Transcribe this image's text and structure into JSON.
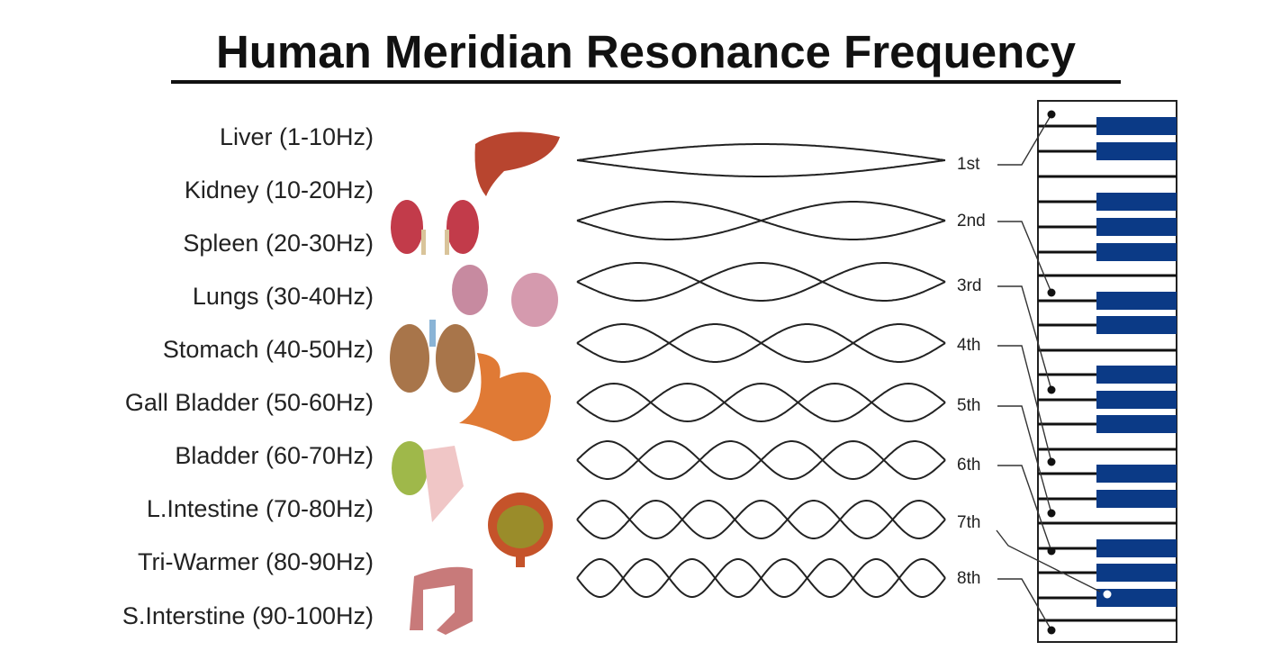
{
  "title": "Human Meridian Resonance Frequency",
  "meridians": [
    {
      "label": "Liver (1-10Hz)"
    },
    {
      "label": "Kidney (10-20Hz)"
    },
    {
      "label": "Spleen (20-30Hz)"
    },
    {
      "label": "Lungs (30-40Hz)"
    },
    {
      "label": "Stomach (40-50Hz)"
    },
    {
      "label": "Gall Bladder (50-60Hz)"
    },
    {
      "label": "Bladder (60-70Hz)"
    },
    {
      "label": "L.Intestine (70-80Hz)"
    },
    {
      "label": "Tri-Warmer (80-90Hz)"
    },
    {
      "label": "S.Interstine (90-100Hz)"
    }
  ],
  "harmonics": [
    "1st",
    "2nd",
    "3rd",
    "4th",
    "5th",
    "6th",
    "7th",
    "8th"
  ],
  "colors": {
    "black_key": "#0b3a86",
    "text": "#222222",
    "organ_red": "#b8452f"
  }
}
